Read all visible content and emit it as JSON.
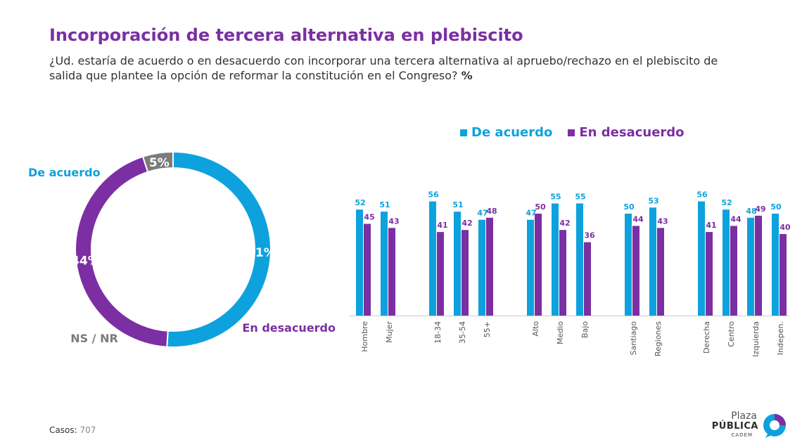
{
  "header": {
    "title": "Incorporación de tercera alternativa en plebiscito",
    "subtitle": "¿Ud. estaría de acuerdo o en desacuerdo con incorporar una tercera alternativa al apruebo/rechazo en el plebiscito de salida que plantee la opción de reformar la constitución en el Congreso?",
    "subtitle_unit": "%"
  },
  "colors": {
    "acuerdo": "#0da2dd",
    "desacuerdo": "#7b2fa2",
    "nsnr": "#7b7b7b",
    "title": "#7b2fa2"
  },
  "legend": {
    "acuerdo": "De acuerdo",
    "desacuerdo": "En desacuerdo"
  },
  "chart_data": [
    {
      "type": "pie",
      "variant": "donut",
      "slices": [
        {
          "label": "De acuerdo",
          "value": 51,
          "value_label": "51%",
          "color": "#0da2dd"
        },
        {
          "label": "En desacuerdo",
          "value": 44,
          "value_label": "44%",
          "color": "#7b2fa2"
        },
        {
          "label": "NS / NR",
          "value": 5,
          "value_label": "5%",
          "color": "#7b7b7b"
        }
      ]
    },
    {
      "type": "bar",
      "categories": [
        "Hombre",
        "Mujer",
        "18-34",
        "35-54",
        "55+",
        "Alto",
        "Medio",
        "Bajo",
        "Santiago",
        "Regiones",
        "Derecha",
        "Centro",
        "Izquierda",
        "Indepen."
      ],
      "groups": [
        [
          "Hombre",
          "Mujer"
        ],
        [
          "18-34",
          "35-54",
          "55+"
        ],
        [
          "Alto",
          "Medio",
          "Bajo"
        ],
        [
          "Santiago",
          "Regiones"
        ],
        [
          "Derecha",
          "Centro",
          "Izquierda",
          "Indepen."
        ]
      ],
      "series": [
        {
          "name": "De acuerdo",
          "color": "#0da2dd",
          "values": [
            52,
            51,
            56,
            51,
            47,
            47,
            55,
            55,
            50,
            53,
            56,
            52,
            48,
            50
          ]
        },
        {
          "name": "En desacuerdo",
          "color": "#7b2fa2",
          "values": [
            45,
            43,
            41,
            42,
            48,
            50,
            42,
            36,
            44,
            43,
            41,
            44,
            49,
            40
          ]
        }
      ],
      "legend_position": "top",
      "grid": false
    }
  ],
  "footer": {
    "casos_label": "Casos:",
    "casos_value": "707"
  },
  "logo": {
    "line1": "Plaza",
    "line2": "PÚBLICA",
    "line3": "CADEM"
  }
}
